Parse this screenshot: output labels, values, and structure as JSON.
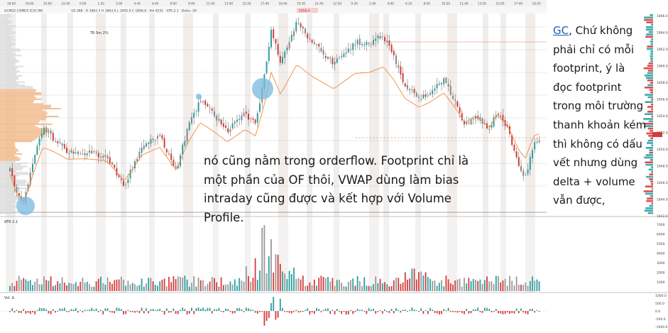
{
  "header": {
    "symbol": "GCM22 COMEX [CV] [M]",
    "info": "1D 368 · O 1862.3 H 1863.0 L 1855.4 C 1856.6 · Vol 4231 · ATR 2.1 · Delta -39",
    "price_tag": "1856.4"
  },
  "time_axis": [
    "18:00",
    "19:00",
    "20:00",
    "22:00",
    "0:00",
    "1:20",
    "3:00",
    "4:40",
    "6:40",
    "8:00",
    "9:40",
    "11:40",
    "13:40",
    "15:20",
    "17:40",
    "18:40",
    "19:30",
    "21:40",
    "22:50",
    "0:30",
    "2:40",
    "4:00",
    "6:20",
    "8:00",
    "10:20",
    "11:40",
    "13:20",
    "15:00",
    "17:40",
    "18:20"
  ],
  "price_axis": [
    "1866.0",
    "1864.0",
    "1862.0",
    "1860.0",
    "1858.0",
    "1856.0",
    "1854.0",
    "1852.0",
    "1850.0",
    "1848.0",
    "1846.0",
    "1844.0",
    "1842.0"
  ],
  "chart_labels": {
    "annotation": "TR 5m 2%",
    "atr_label": "ATR 2.1",
    "vol_label": "Vol. Δ"
  },
  "volume_axis": [
    "7000",
    "6000",
    "5000",
    "4000",
    "3000",
    "2000",
    "1000"
  ],
  "delta_axis": [
    "1000.0",
    "500.0",
    "0.0",
    "-500.0",
    "-1000.0"
  ],
  "side_note": {
    "link": "GC",
    "text": ", Chứ không phải chỉ có mỗi footprint, ý là đọc footprint trong môi trường thanh khoản kém thì không có dấu vết nhưng dùng delta + volume vẫn được,"
  },
  "main_note": "nó cũng nằm trong orderflow. Footprint chỉ là một phần của OF thôi, VWAP dùng làm bias intraday cũng được và kết hợp với Volume Profile.",
  "colors": {
    "up": "#2e9e9e",
    "down": "#d63b3b",
    "vwap": "#f08a3c",
    "profile": "#f5c9a0",
    "shade": "#ede9e6",
    "highlight": "#7ab8e0"
  }
}
